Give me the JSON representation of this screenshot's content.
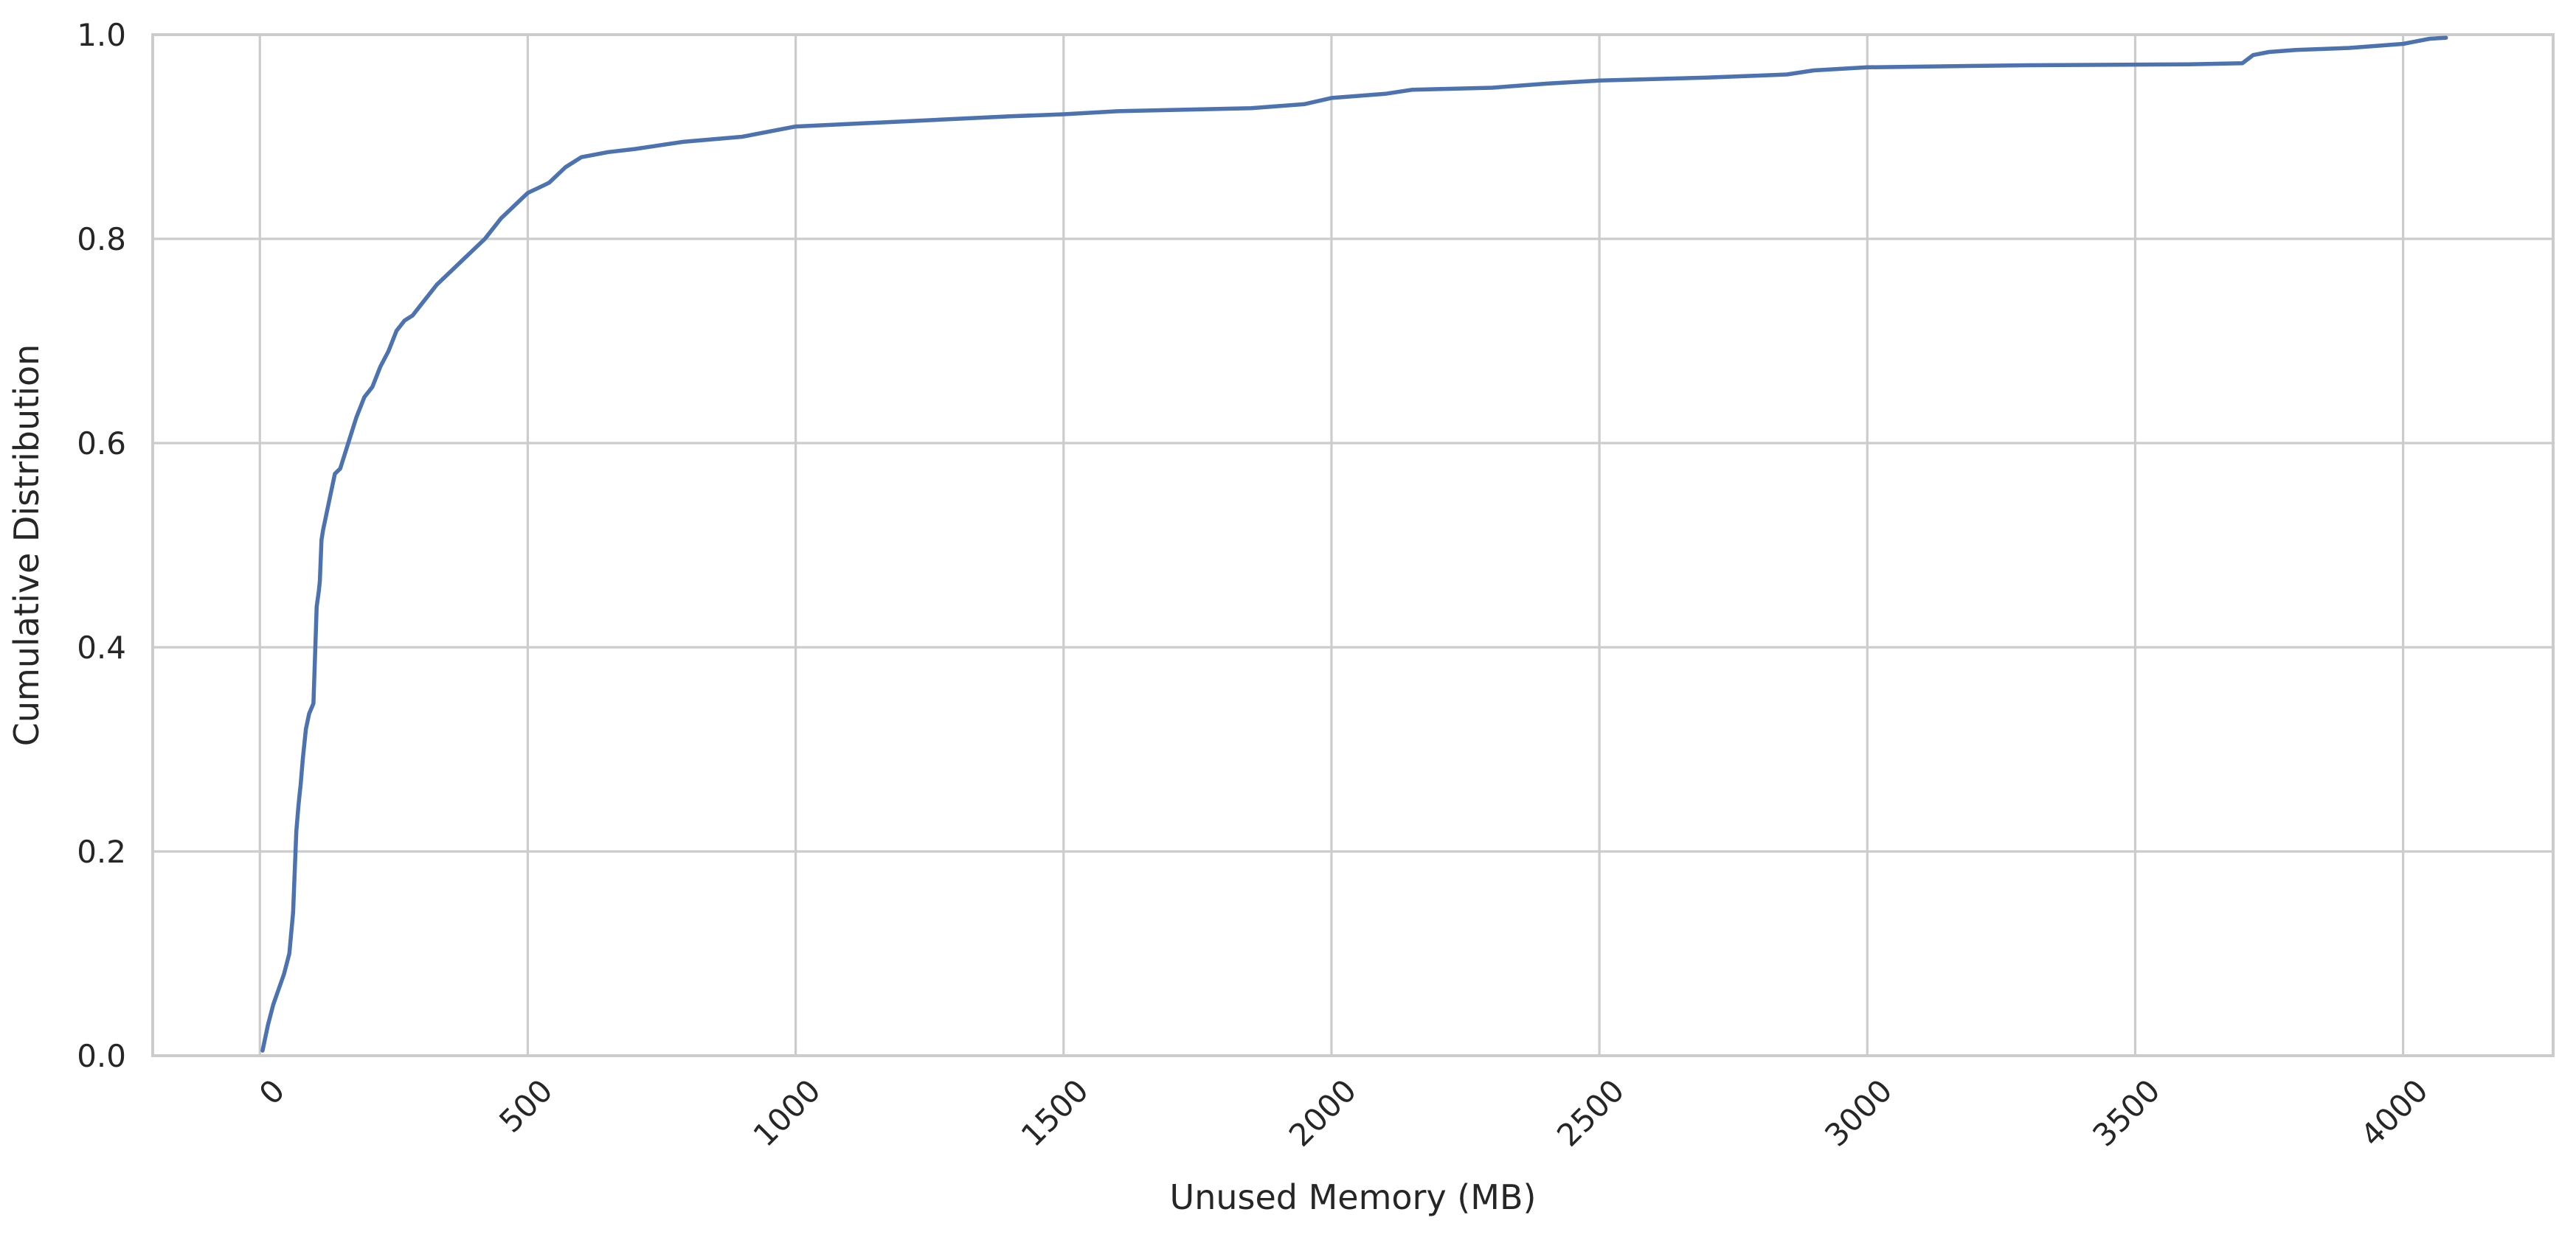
{
  "chart_data": {
    "type": "line",
    "xlabel": "Unused Memory (MB)",
    "ylabel": "Cumulative Distribution",
    "xlim": [
      -200,
      4280
    ],
    "ylim": [
      0,
      1
    ],
    "x_ticks": [
      0,
      500,
      1000,
      1500,
      2000,
      2500,
      3000,
      3500,
      4000
    ],
    "x_tick_labels": [
      "0",
      "500",
      "1000",
      "1500",
      "2000",
      "2500",
      "3000",
      "3500",
      "4000"
    ],
    "x_tick_rotation": 45,
    "y_ticks": [
      0.0,
      0.2,
      0.4,
      0.6,
      0.8,
      1.0
    ],
    "y_tick_labels": [
      "0.0",
      "0.2",
      "0.4",
      "0.6",
      "0.8",
      "1.0"
    ],
    "grid": true,
    "series": [
      {
        "color": "#4c72b0",
        "x": [
          5,
          15,
          25,
          35,
          45,
          55,
          62,
          68,
          72,
          74,
          76,
          80,
          82,
          86,
          92,
          100,
          106,
          110,
          112,
          115,
          118,
          122,
          130,
          140,
          150,
          165,
          180,
          195,
          210,
          225,
          240,
          255,
          270,
          285,
          300,
          330,
          360,
          390,
          420,
          450,
          470,
          480,
          500,
          520,
          540,
          560,
          570,
          600,
          650,
          700,
          790,
          900,
          1000,
          1200,
          1400,
          1500,
          1600,
          1850,
          1950,
          2000,
          2100,
          2150,
          2300,
          2400,
          2500,
          2700,
          2850,
          2900,
          3000,
          3300,
          3600,
          3700,
          3720,
          3750,
          3800,
          3900,
          3950,
          4000,
          4020,
          4050,
          4080
        ],
        "y": [
          0.005,
          0.03,
          0.05,
          0.065,
          0.08,
          0.1,
          0.14,
          0.22,
          0.245,
          0.255,
          0.265,
          0.29,
          0.3,
          0.32,
          0.335,
          0.345,
          0.44,
          0.455,
          0.465,
          0.505,
          0.515,
          0.525,
          0.545,
          0.57,
          0.575,
          0.6,
          0.625,
          0.645,
          0.655,
          0.675,
          0.69,
          0.71,
          0.72,
          0.725,
          0.735,
          0.755,
          0.77,
          0.785,
          0.8,
          0.82,
          0.83,
          0.835,
          0.845,
          0.85,
          0.855,
          0.865,
          0.87,
          0.88,
          0.885,
          0.888,
          0.895,
          0.9,
          0.91,
          0.915,
          0.92,
          0.922,
          0.925,
          0.928,
          0.932,
          0.938,
          0.942,
          0.946,
          0.948,
          0.952,
          0.955,
          0.958,
          0.961,
          0.965,
          0.968,
          0.97,
          0.971,
          0.972,
          0.98,
          0.983,
          0.985,
          0.987,
          0.989,
          0.991,
          0.993,
          0.996,
          0.997
        ]
      }
    ]
  }
}
